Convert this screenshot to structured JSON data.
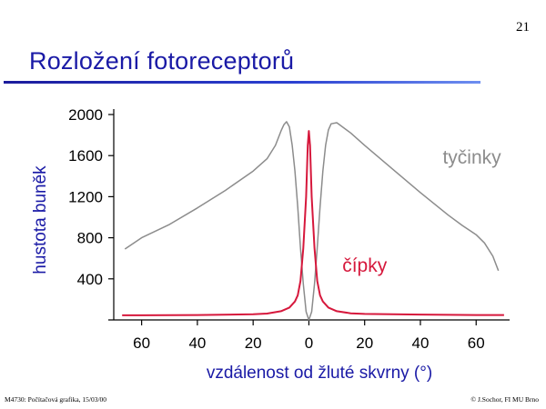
{
  "page_number": "21",
  "slide": {
    "title": "Rozložení fotoreceptorů"
  },
  "footer": {
    "left": "M4730: Počítačová grafika, 15/03/00",
    "right": "© J.Sochor, FI MU Brno"
  },
  "colors": {
    "title": "#1a1aa6",
    "rods": "#8c8c8c",
    "cones": "#d6183c",
    "rule": "#1c1c9c"
  },
  "chart_data": {
    "type": "line",
    "title": "",
    "xlabel": "vzdálenost od žluté skvrny (°)",
    "ylabel": "hustota buněk",
    "xlim": [
      -70,
      72
    ],
    "ylim": [
      0,
      2000
    ],
    "x_ticks": [
      -60,
      -40,
      -20,
      0,
      20,
      40,
      60
    ],
    "x_tick_labels": [
      "60",
      "40",
      "20",
      "0",
      "20",
      "40",
      "60"
    ],
    "y_ticks": [
      400,
      800,
      1200,
      1600,
      2000
    ],
    "y_tick_labels": [
      "400",
      "800",
      "1200",
      "1600",
      "2000"
    ],
    "grid": false,
    "series": [
      {
        "name": "tyčinky",
        "color_key": "rods",
        "points": [
          [
            -66,
            690
          ],
          [
            -60,
            800
          ],
          [
            -50,
            930
          ],
          [
            -40,
            1090
          ],
          [
            -30,
            1260
          ],
          [
            -20,
            1450
          ],
          [
            -15,
            1570
          ],
          [
            -12,
            1700
          ],
          [
            -10,
            1840
          ],
          [
            -9,
            1900
          ],
          [
            -8,
            1930
          ],
          [
            -7,
            1880
          ],
          [
            -6,
            1700
          ],
          [
            -5,
            1450
          ],
          [
            -4,
            1100
          ],
          [
            -3,
            700
          ],
          [
            -2,
            350
          ],
          [
            -1,
            80
          ],
          [
            0,
            0
          ],
          [
            1,
            80
          ],
          [
            2,
            350
          ],
          [
            3,
            700
          ],
          [
            4,
            1100
          ],
          [
            5,
            1450
          ],
          [
            6,
            1700
          ],
          [
            7,
            1850
          ],
          [
            8,
            1910
          ],
          [
            10,
            1920
          ],
          [
            15,
            1820
          ],
          [
            20,
            1700
          ],
          [
            30,
            1470
          ],
          [
            40,
            1240
          ],
          [
            50,
            1020
          ],
          [
            55,
            920
          ],
          [
            60,
            830
          ],
          [
            63,
            750
          ],
          [
            66,
            620
          ],
          [
            68,
            480
          ]
        ]
      },
      {
        "name": "čípky",
        "color_key": "cones",
        "points": [
          [
            -67,
            45
          ],
          [
            -60,
            45
          ],
          [
            -40,
            48
          ],
          [
            -20,
            55
          ],
          [
            -15,
            62
          ],
          [
            -10,
            85
          ],
          [
            -7,
            120
          ],
          [
            -5,
            180
          ],
          [
            -4,
            240
          ],
          [
            -3,
            380
          ],
          [
            -2,
            700
          ],
          [
            -1,
            1200
          ],
          [
            -0.4,
            1700
          ],
          [
            0,
            1840
          ],
          [
            0.4,
            1700
          ],
          [
            1,
            1200
          ],
          [
            2,
            700
          ],
          [
            3,
            380
          ],
          [
            4,
            240
          ],
          [
            5,
            180
          ],
          [
            7,
            120
          ],
          [
            10,
            85
          ],
          [
            15,
            65
          ],
          [
            20,
            58
          ],
          [
            40,
            52
          ],
          [
            60,
            48
          ],
          [
            70,
            48
          ]
        ]
      }
    ],
    "series_labels": [
      {
        "text": "tyčinky",
        "color_key": "rods",
        "x": 48,
        "y": 1520
      },
      {
        "text": "čípky",
        "color_key": "cones",
        "x": 12,
        "y": 470
      }
    ]
  }
}
